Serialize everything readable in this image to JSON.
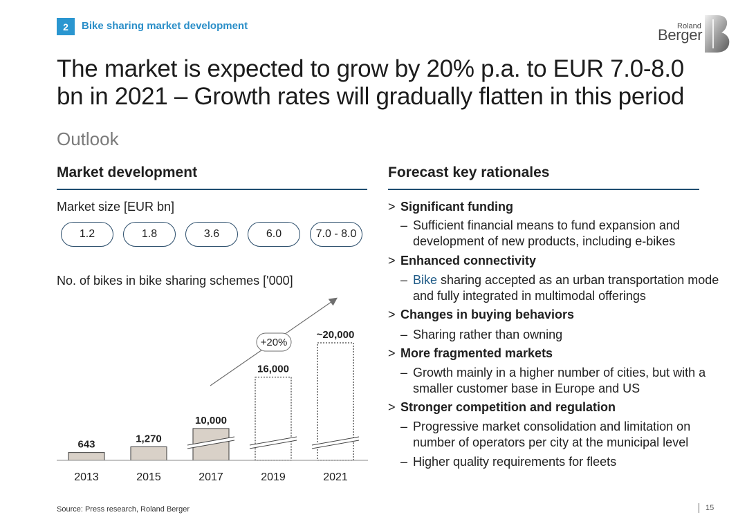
{
  "header": {
    "section_number": "2",
    "section_title": "Bike sharing market development",
    "logo_line1": "Roland",
    "logo_line2": "Berger"
  },
  "headline": "The market is expected to grow by 20% p.a. to EUR 7.0-8.0 bn in 2021 – Growth rates will gradually flatten in this period",
  "subtitle": "Outlook",
  "left": {
    "heading": "Market development",
    "market_size_label": "Market size [EUR bn]",
    "market_sizes": [
      "1.2",
      "1.8",
      "3.6",
      "6.0",
      "7.0 - 8.0"
    ],
    "bikes_label": "No. of bikes in bike sharing schemes ['000]",
    "growth_label": "+20%"
  },
  "chart_data": {
    "type": "bar",
    "title": "No. of bikes in bike sharing schemes ['000]",
    "categories": [
      "2013",
      "2015",
      "2017",
      "2019",
      "2021"
    ],
    "values": [
      643,
      1270,
      10000,
      16000,
      20000
    ],
    "data_labels": [
      "643",
      "1,270",
      "10,000",
      "16,000",
      "~20,000"
    ],
    "forecast": [
      false,
      false,
      false,
      true,
      true
    ],
    "axis_break": [
      false,
      false,
      true,
      true,
      true
    ],
    "annotation": "+20%",
    "xlabel": "",
    "ylabel": ""
  },
  "right": {
    "heading": "Forecast key rationales",
    "bullet_symbol": ">",
    "dash_symbol": "–",
    "items": [
      {
        "title": "Significant funding",
        "subs": [
          {
            "pre": "",
            "text": "Sufficient financial means to fund expansion and development of new products, including e-bikes"
          }
        ]
      },
      {
        "title": "Enhanced connectivity",
        "subs": [
          {
            "pre": "Bike",
            "text": " sharing accepted as an urban transportation mode and fully integrated in multimodal offerings"
          }
        ]
      },
      {
        "title": "Changes in buying behaviors",
        "subs": [
          {
            "pre": "",
            "text": "Sharing rather than owning"
          }
        ]
      },
      {
        "title": "More fragmented markets",
        "subs": [
          {
            "pre": "",
            "text": "Growth mainly in a higher number of cities, but with a smaller customer base in Europe and US"
          }
        ]
      },
      {
        "title": "Stronger competition and regulation",
        "subs": [
          {
            "pre": "",
            "text": "Progressive market consolidation and limitation on number of operators per city at the municipal level"
          },
          {
            "pre": "",
            "text": "Higher quality requirements for fleets"
          }
        ]
      }
    ]
  },
  "footer": {
    "source": "Source: Press research, Roland Berger",
    "page_number": "15"
  },
  "colors": {
    "accent_blue": "#2a96d0",
    "rule_navy": "#1e4d70",
    "bar_fill": "#d9d1c8",
    "bar_stroke": "#3a3a3a",
    "arrow": "#6e6e6e"
  }
}
